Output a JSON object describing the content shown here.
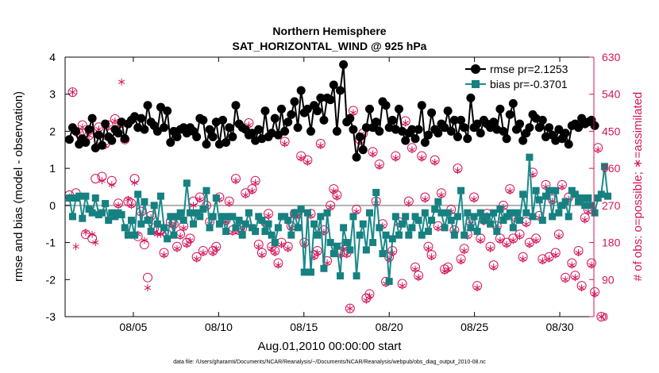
{
  "chart_data": {
    "type": "line",
    "title": "Northern Hemisphere",
    "subtitle": "SAT_HORIZONTAL_WIND @ 925 hPa",
    "xlabel": "Aug.01,2010 00:00:00 start",
    "ylabel": "rmse and bias (model - observation)",
    "y2label": "# of obs: o=possible; ∗=assimilated",
    "xlim": [
      1,
      32
    ],
    "ylim": [
      -3,
      4
    ],
    "y2lim": [
      0,
      630
    ],
    "x_ticks": [
      5,
      10,
      15,
      20,
      25,
      30
    ],
    "x_tick_labels": [
      "08/05",
      "08/10",
      "08/15",
      "08/20",
      "08/25",
      "08/30"
    ],
    "y_ticks": [
      -3,
      -2,
      -1,
      0,
      1,
      2,
      3,
      4
    ],
    "y_tick_labels": [
      "-3",
      "-2",
      "-1",
      "0",
      "1",
      "2",
      "3",
      "4"
    ],
    "y2_ticks": [
      0,
      90,
      180,
      270,
      360,
      450,
      540,
      630
    ],
    "y2_tick_labels": [
      "0",
      "90",
      "180",
      "270",
      "360",
      "450",
      "540",
      "630"
    ],
    "legend": {
      "position": "top-right",
      "rmse_label": "rmse pr=2.1253",
      "bias_label": "bias pr=-0.3701"
    },
    "colors": {
      "rmse": "#000000",
      "bias": "#1a8a8a",
      "bias_marker": "#178080",
      "obs": "#d4145a",
      "zero_line": "#b0b0b0"
    },
    "series": [
      {
        "name": "rmse",
        "values": [
          1.78,
          2.1,
          2.0,
          1.65,
          1.8,
          1.7,
          2.05,
          2.35,
          1.55,
          1.9,
          1.62,
          2.2,
          1.85,
          1.75,
          2.05,
          1.95,
          2.25,
          1.8,
          2.2,
          2.3,
          2.4,
          2.1,
          2.35,
          2.05,
          2.7,
          2.25,
          2.15,
          2.0,
          2.65,
          2.1,
          2.55,
          1.7,
          2.0,
          1.85,
          2.05,
          2.1,
          1.95,
          2.1,
          2.0,
          1.85,
          2.35,
          2.3,
          1.65,
          2.05,
          1.85,
          2.25,
          1.65,
          2.3,
          1.7,
          2.1,
          1.85,
          2.7,
          2.2,
          2.1,
          2.05,
          1.9,
          1.95,
          1.75,
          2.05,
          1.8,
          2.55,
          1.85,
          1.95,
          2.35,
          1.9,
          2.6,
          2.0,
          2.25,
          2.45,
          2.8,
          2.1,
          3.1,
          2.5,
          2.6,
          2.0,
          2.7,
          2.55,
          2.9,
          2.3,
          2.9,
          2.85,
          3.25,
          2.0,
          3.1,
          3.8,
          2.25,
          2.35,
          2.05,
          1.3,
          1.85,
          1.5,
          2.1,
          2.6,
          2.1,
          2.25,
          2.0,
          2.8,
          2.7,
          2.1,
          2.3,
          2.05,
          2.6,
          2.0,
          1.75,
          1.95,
          2.05,
          1.8,
          2.05,
          2.7,
          1.7,
          1.9,
          2.5,
          2.05,
          1.95,
          2.2,
          2.1,
          2.55,
          2.0,
          2.3,
          1.85,
          2.3,
          2.1,
          1.8,
          2.9,
          2.1,
          2.2,
          1.95,
          2.3,
          2.2,
          2.1,
          2.25,
          2.05,
          2.6,
          2.0,
          1.8,
          2.45,
          2.75,
          2.05,
          2.2,
          1.75,
          1.95,
          2.1,
          2.45,
          2.35,
          2.1,
          2.3,
          1.85,
          2.1,
          1.9,
          1.75,
          2.05,
          1.8,
          1.95,
          1.65,
          2.15,
          2.2,
          2.1,
          2.35,
          2.2,
          2.25,
          2.3,
          2.15
        ]
      },
      {
        "name": "bias",
        "values": [
          0.2,
          -0.3,
          0.2,
          0.25,
          -0.35,
          0.25,
          -0.1,
          -0.2,
          0.2,
          -0.25,
          -0.2,
          0.05,
          -0.4,
          -0.2,
          -0.3,
          -0.2,
          -0.25,
          -0.6,
          -0.8,
          -0.4,
          -0.8,
          0.3,
          -0.5,
          0.1,
          -0.4,
          -0.7,
          0.0,
          -0.5,
          0.25,
          -0.6,
          -0.9,
          -0.3,
          -0.8,
          -0.3,
          -0.2,
          -0.4,
          0.6,
          -0.2,
          -0.5,
          -0.2,
          -0.3,
          -0.1,
          0.4,
          -0.6,
          -0.3,
          0.2,
          -0.5,
          -0.3,
          -0.7,
          -0.3,
          -0.3,
          -0.6,
          -0.4,
          -0.8,
          -0.5,
          -0.2,
          -0.6,
          -0.7,
          -0.3,
          -0.4,
          -0.7,
          -0.5,
          -0.8,
          -1.0,
          -0.6,
          -0.3,
          -0.3,
          -0.4,
          -0.8,
          -0.2,
          -0.6,
          -0.1,
          -1.8,
          -0.2,
          -1.8,
          -0.5,
          -0.8,
          -0.3,
          -1.7,
          -0.2,
          -1.0,
          -1.3,
          -1.1,
          -1.9,
          -0.6,
          -1.0,
          -1.2,
          -0.3,
          -1.9,
          -0.8,
          -0.5,
          -1.2,
          -0.2,
          -1.0,
          0.35,
          -0.6,
          -1.3,
          -0.8,
          -2.05,
          -0.9,
          -0.3,
          -0.8,
          -0.5,
          -0.3,
          -0.8,
          -0.6,
          -0.3,
          -0.4,
          -0.8,
          -0.2,
          -0.7,
          -0.4,
          -0.1,
          0.1,
          -0.2,
          -0.6,
          -0.2,
          -0.4,
          -0.8,
          -0.3,
          0.4,
          -0.8,
          -0.2,
          -0.6,
          -0.3,
          -0.7,
          -0.2,
          -0.4,
          -0.3,
          -0.5,
          -0.2,
          -0.7,
          -0.1,
          -0.4,
          -0.3,
          -0.2,
          -0.6,
          -0.2,
          -0.4,
          0.3,
          -0.2,
          1.3,
          -0.3,
          0.4,
          0.15,
          -0.4,
          0.25,
          0.4,
          -0.3,
          0.4,
          -0.2,
          0.0,
          0.1,
          -0.3,
          0.4,
          0.3,
          0.1,
          0.2,
          0.0,
          0.2,
          0.0,
          -0.2,
          0.2,
          0.3,
          1.05,
          0.25
        ]
      },
      {
        "name": "obs_possible",
        "values": [
          295,
          545,
          300,
          445,
          465,
          200,
          440,
          190,
          335,
          460,
          340,
          420,
          465,
          330,
          480,
          275,
          470,
          430,
          280,
          275,
          335,
          195,
          255,
          175,
          95,
          245,
          215,
          210,
          210,
          155,
          200,
          230,
          225,
          170,
          200,
          220,
          180,
          190,
          280,
          145,
          290,
          160,
          270,
          230,
          160,
          170,
          290,
          240,
          235,
          280,
          210,
          335,
          210,
          215,
          300,
          470,
          310,
          330,
          175,
          155,
          230,
          250,
          170,
          160,
          130,
          180,
          425,
          170,
          220,
          250,
          250,
          390,
          180,
          380,
          250,
          150,
          160,
          420,
          210,
          135,
          270,
          310,
          295,
          155,
          170,
          155,
          20,
          500,
          260,
          430,
          445,
          45,
          55,
          400,
          280,
          370,
          225,
          85,
          145,
          160,
          390,
          230,
          80,
          475,
          280,
          410,
          120,
          100,
          390,
          290,
          170,
          150,
          380,
          220,
          300,
          115,
          120,
          260,
          210,
          360,
          140,
          165,
          200,
          230,
          290,
          75,
          190,
          235,
          250,
          170,
          125,
          220,
          190,
          270,
          180,
          310,
          190,
          240,
          200,
          145,
          230,
          180,
          350,
          190,
          245,
          140,
          320,
          145,
          285,
          155,
          200,
          320,
          95,
          290,
          130,
          100,
          160,
          75,
          240,
          260,
          130,
          60,
          410,
          0
        ]
      },
      {
        "name": "obs_assimilated",
        "values": [
          290,
          545,
          170,
          445,
          460,
          205,
          440,
          200,
          180,
          455,
          330,
          415,
          460,
          320,
          475,
          270,
          570,
          430,
          285,
          270,
          325,
          200,
          250,
          185,
          70,
          240,
          205,
          200,
          200,
          150,
          190,
          225,
          220,
          165,
          195,
          215,
          175,
          185,
          270,
          140,
          285,
          155,
          265,
          225,
          155,
          165,
          285,
          235,
          230,
          275,
          205,
          330,
          205,
          210,
          295,
          465,
          305,
          325,
          170,
          150,
          225,
          245,
          165,
          155,
          125,
          175,
          420,
          165,
          215,
          245,
          245,
          385,
          175,
          375,
          245,
          145,
          155,
          415,
          205,
          130,
          265,
          305,
          290,
          150,
          165,
          150,
          20,
          495,
          255,
          425,
          440,
          40,
          50,
          395,
          275,
          365,
          220,
          80,
          140,
          155,
          385,
          225,
          75,
          470,
          275,
          405,
          115,
          95,
          385,
          285,
          165,
          145,
          375,
          215,
          295,
          110,
          115,
          255,
          205,
          355,
          135,
          160,
          195,
          225,
          285,
          70,
          185,
          230,
          245,
          165,
          120,
          215,
          185,
          265,
          175,
          305,
          185,
          235,
          195,
          140,
          225,
          175,
          345,
          185,
          240,
          135,
          315,
          140,
          280,
          150,
          195,
          315,
          90,
          285,
          125,
          95,
          155,
          70,
          235,
          255,
          125,
          55,
          405,
          0
        ]
      }
    ],
    "footer": "data file: /Users/gharamti/Documents/NCAR/Reanalysis/~/Documents/NCAR/Reanalysis/webpub/obs_diag_output_2010-08.nc"
  }
}
